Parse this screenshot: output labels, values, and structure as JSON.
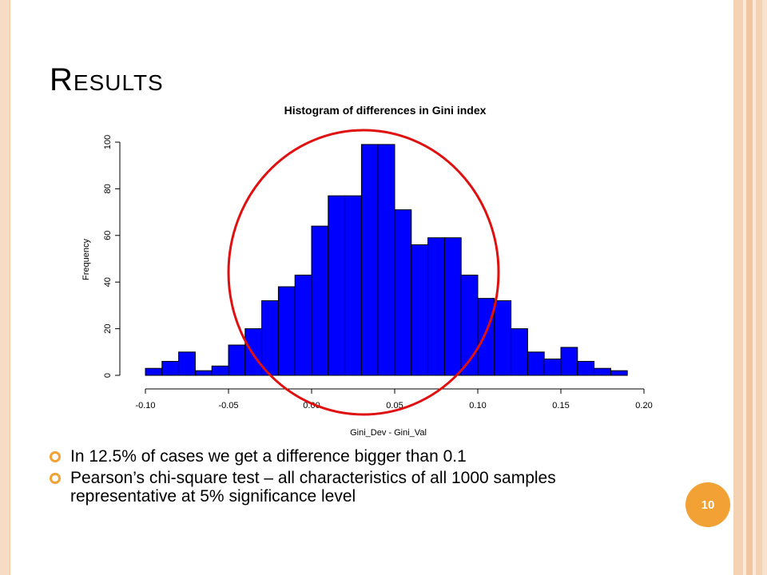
{
  "slide": {
    "title": "Results",
    "page_number": "10",
    "bullets": [
      "In 12.5% of cases we get a difference bigger than 0.1",
      "Pearson’s chi-square test – all characteristics of all 1000 samples representative at 5% significance level"
    ],
    "colors": {
      "bullet": "#f2a135",
      "badge": "#f2a135",
      "bars": "#0000ff",
      "circle": "#e01010"
    }
  },
  "chart_data": {
    "type": "bar",
    "title": "Histogram of differences in Gini index",
    "xlabel": "Gini_Dev - Gini_Val",
    "ylabel": "Frequency",
    "bin_edges": [
      -0.1,
      -0.09,
      -0.08,
      -0.07,
      -0.06,
      -0.05,
      -0.04,
      -0.03,
      -0.02,
      -0.01,
      0.0,
      0.01,
      0.02,
      0.03,
      0.04,
      0.05,
      0.06,
      0.07,
      0.08,
      0.09,
      0.1,
      0.11,
      0.12,
      0.13,
      0.14,
      0.15,
      0.16,
      0.17,
      0.18,
      0.19
    ],
    "values": [
      3,
      6,
      10,
      2,
      4,
      13,
      20,
      32,
      38,
      43,
      64,
      77,
      77,
      99,
      99,
      71,
      56,
      59,
      59,
      43,
      33,
      32,
      20,
      10,
      7,
      12,
      6,
      3,
      2
    ],
    "xlim": [
      -0.1,
      0.2
    ],
    "ylim": [
      0,
      100
    ],
    "x_ticks": [
      "-0.10",
      "-0.05",
      "0.00",
      "0.05",
      "0.10",
      "0.15",
      "0.20"
    ],
    "y_ticks": [
      "0",
      "20",
      "40",
      "60",
      "80",
      "100"
    ],
    "grid": false,
    "annotation": "red-circle"
  }
}
